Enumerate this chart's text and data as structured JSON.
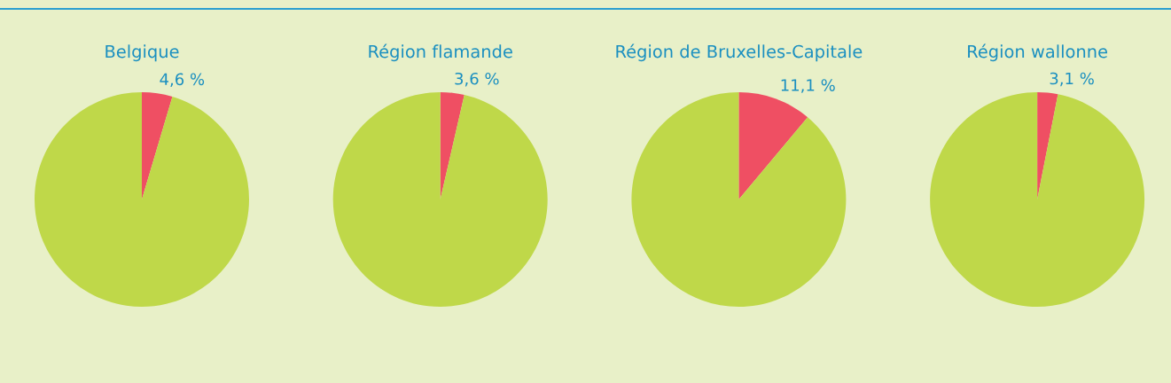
{
  "chart_data": [
    {
      "type": "pie",
      "title": "Belgique",
      "categories": [
        null,
        null
      ],
      "values": [
        4.6,
        95.4
      ],
      "colors": [
        "#ef4f63",
        "#bfd849"
      ],
      "value_labels": [
        "4,6 %",
        null
      ]
    },
    {
      "type": "pie",
      "title": "Région flamande",
      "categories": [
        null,
        null
      ],
      "values": [
        3.6,
        96.4
      ],
      "colors": [
        "#ef4f63",
        "#bfd849"
      ],
      "value_labels": [
        "3,6 %",
        null
      ]
    },
    {
      "type": "pie",
      "title": "Région de Bruxelles-Capitale",
      "categories": [
        null,
        null
      ],
      "values": [
        11.1,
        88.9
      ],
      "colors": [
        "#ef4f63",
        "#bfd849"
      ],
      "value_labels": [
        "11,1 %",
        null
      ]
    },
    {
      "type": "pie",
      "title": "Région wallonne",
      "categories": [
        null,
        null
      ],
      "values": [
        3.1,
        96.9
      ],
      "colors": [
        "#ef4f63",
        "#bfd849"
      ],
      "value_labels": [
        "3,1 %",
        null
      ]
    }
  ]
}
